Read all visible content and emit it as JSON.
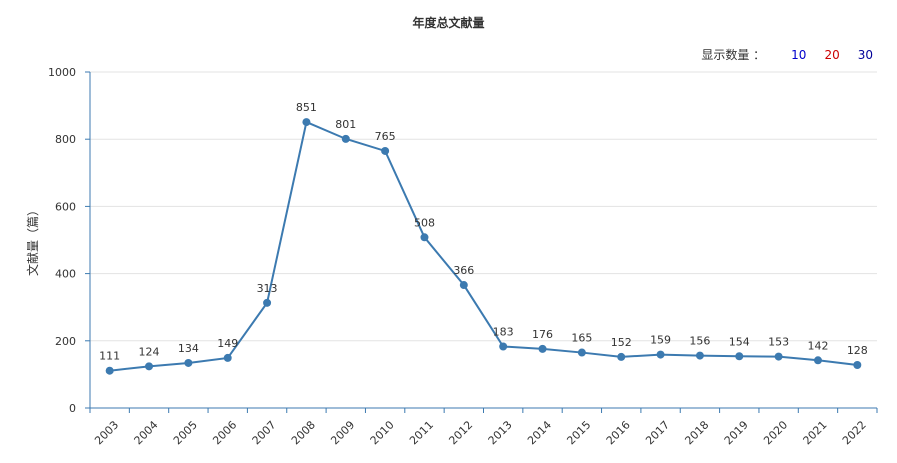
{
  "title": "年度总文献量",
  "display_count": {
    "label": "显示数量 ：",
    "options": [
      {
        "label": "10",
        "color": "#0000cc"
      },
      {
        "label": "20",
        "color": "#cc0000"
      },
      {
        "label": "30",
        "color": "#000099"
      }
    ]
  },
  "colors": {
    "line": "#3c7ab0",
    "axis": "#3c7ab0",
    "grid": "#e3e3e3"
  },
  "chart_data": {
    "type": "line",
    "title": "年度总文献量",
    "ylabel": "文献量（篇）",
    "xlabel": "",
    "ylim": [
      0,
      1000
    ],
    "yticks": [
      0,
      200,
      400,
      600,
      800,
      1000
    ],
    "grid": true,
    "categories": [
      "2003",
      "2004",
      "2005",
      "2006",
      "2007",
      "2008",
      "2009",
      "2010",
      "2011",
      "2012",
      "2013",
      "2014",
      "2015",
      "2016",
      "2017",
      "2018",
      "2019",
      "2020",
      "2021",
      "2022"
    ],
    "series": [
      {
        "values": [
          111,
          124,
          134,
          149,
          313,
          851,
          801,
          765,
          508,
          366,
          183,
          176,
          165,
          152,
          159,
          156,
          154,
          153,
          142,
          128
        ]
      }
    ]
  }
}
